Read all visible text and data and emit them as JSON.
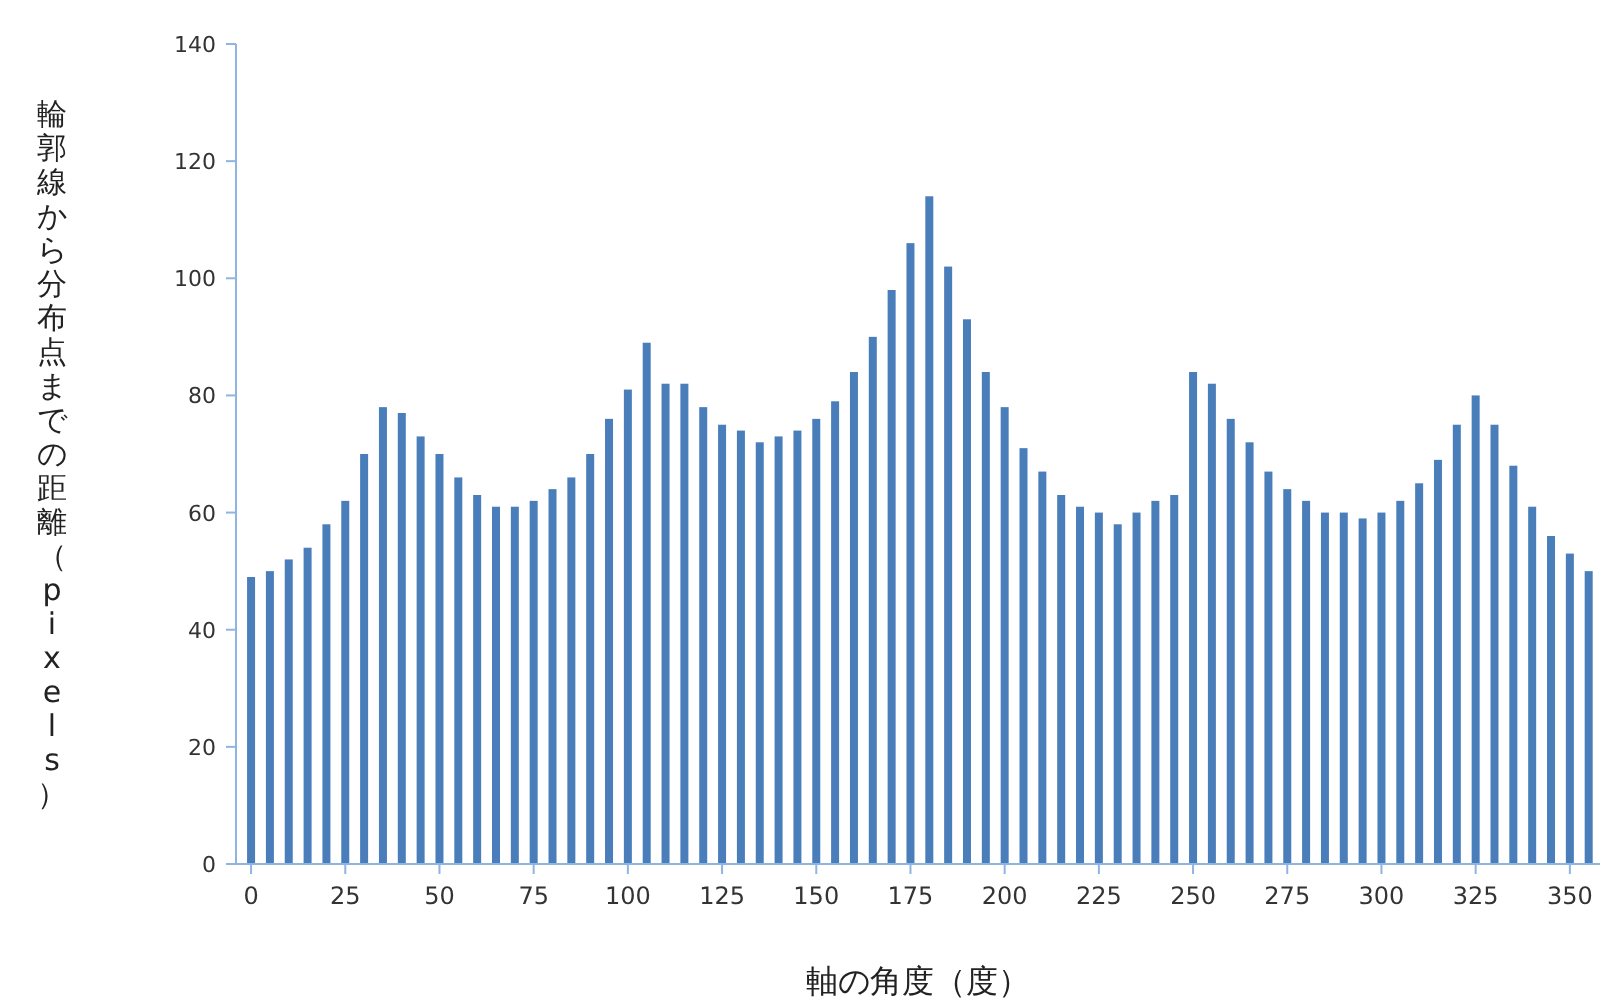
{
  "chart_data": {
    "type": "bar",
    "xlabel": "軸の角度（度）",
    "ylabel": "輪郭線から分布点までの距離（pixels）",
    "color": "#4a7ebb",
    "x": [
      0,
      5,
      10,
      15,
      20,
      25,
      30,
      35,
      40,
      45,
      50,
      55,
      60,
      65,
      70,
      75,
      80,
      85,
      90,
      95,
      100,
      105,
      110,
      115,
      120,
      125,
      130,
      135,
      140,
      145,
      150,
      155,
      160,
      165,
      170,
      175,
      180,
      185,
      190,
      195,
      200,
      205,
      210,
      215,
      220,
      225,
      230,
      235,
      240,
      245,
      250,
      255,
      260,
      265,
      270,
      275,
      280,
      285,
      290,
      295,
      300,
      305,
      310,
      315,
      320,
      325,
      330,
      335,
      340,
      345,
      350,
      355
    ],
    "values": [
      49,
      50,
      52,
      54,
      58,
      62,
      70,
      78,
      77,
      73,
      70,
      66,
      63,
      61,
      61,
      62,
      64,
      66,
      70,
      76,
      81,
      89,
      82,
      82,
      78,
      75,
      74,
      72,
      73,
      74,
      76,
      79,
      84,
      90,
      98,
      106,
      114,
      102,
      93,
      84,
      78,
      71,
      67,
      63,
      61,
      60,
      58,
      60,
      62,
      63,
      84,
      82,
      76,
      72,
      67,
      64,
      62,
      60,
      60,
      59,
      60,
      62,
      65,
      69,
      75,
      80,
      75,
      68,
      61,
      56,
      53,
      50
    ],
    "xlim": [
      -4,
      358
    ],
    "xticks": [
      0,
      25,
      50,
      75,
      100,
      125,
      150,
      175,
      200,
      225,
      250,
      275,
      300,
      325,
      350
    ],
    "ylim": [
      0,
      140
    ],
    "yticks": [
      0,
      20,
      40,
      60,
      80,
      100,
      120,
      140
    ],
    "grid": false
  }
}
